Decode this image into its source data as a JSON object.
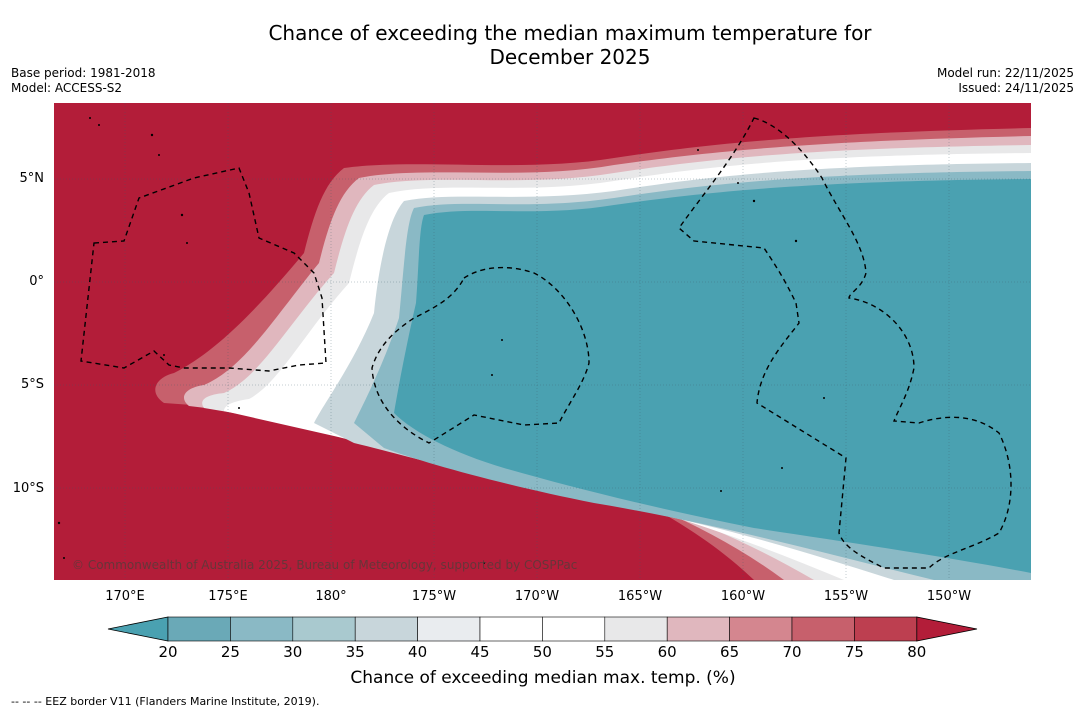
{
  "title_line1": "Chance of exceeding the median maximum temperature for",
  "title_line2": "December 2025",
  "base_period": "Base period: 1981-2018",
  "model": "Model: ACCESS-S2",
  "model_run": "Model run: 22/11/2025",
  "issued": "Issued: 24/11/2025",
  "lat_labels": [
    "5°N",
    "0°",
    "5°S",
    "10°S"
  ],
  "lon_labels": [
    "170°E",
    "175°E",
    "180°",
    "175°W",
    "170°W",
    "165°W",
    "160°W",
    "155°W",
    "150°W"
  ],
  "copyright": "© Commonwealth of Australia 2025, Bureau of Meteorology, supported by COSPPac",
  "colorbar": {
    "title": "Chance of exceeding median max. temp. (%)",
    "labels": [
      "20",
      "25",
      "30",
      "35",
      "40",
      "45",
      "50",
      "55",
      "60",
      "65",
      "70",
      "75",
      "80"
    ],
    "colors": [
      "#6aa9b7",
      "#8ab9c5",
      "#a9c9cf",
      "#c8d6db",
      "#e9ecef",
      "#ffffff",
      "#ffffff",
      "#e8e8e9",
      "#e0b7be",
      "#d4868f",
      "#c7606c",
      "#bd3f50"
    ],
    "low_color": "#4aa1b1",
    "high_color": "#b31d39"
  },
  "footnote": "-- -- -- EEZ border V11 (Flanders Marine Institute, 2019).",
  "map_colors": {
    "warm": "#b31d39",
    "cool": "#4aa1b1"
  }
}
